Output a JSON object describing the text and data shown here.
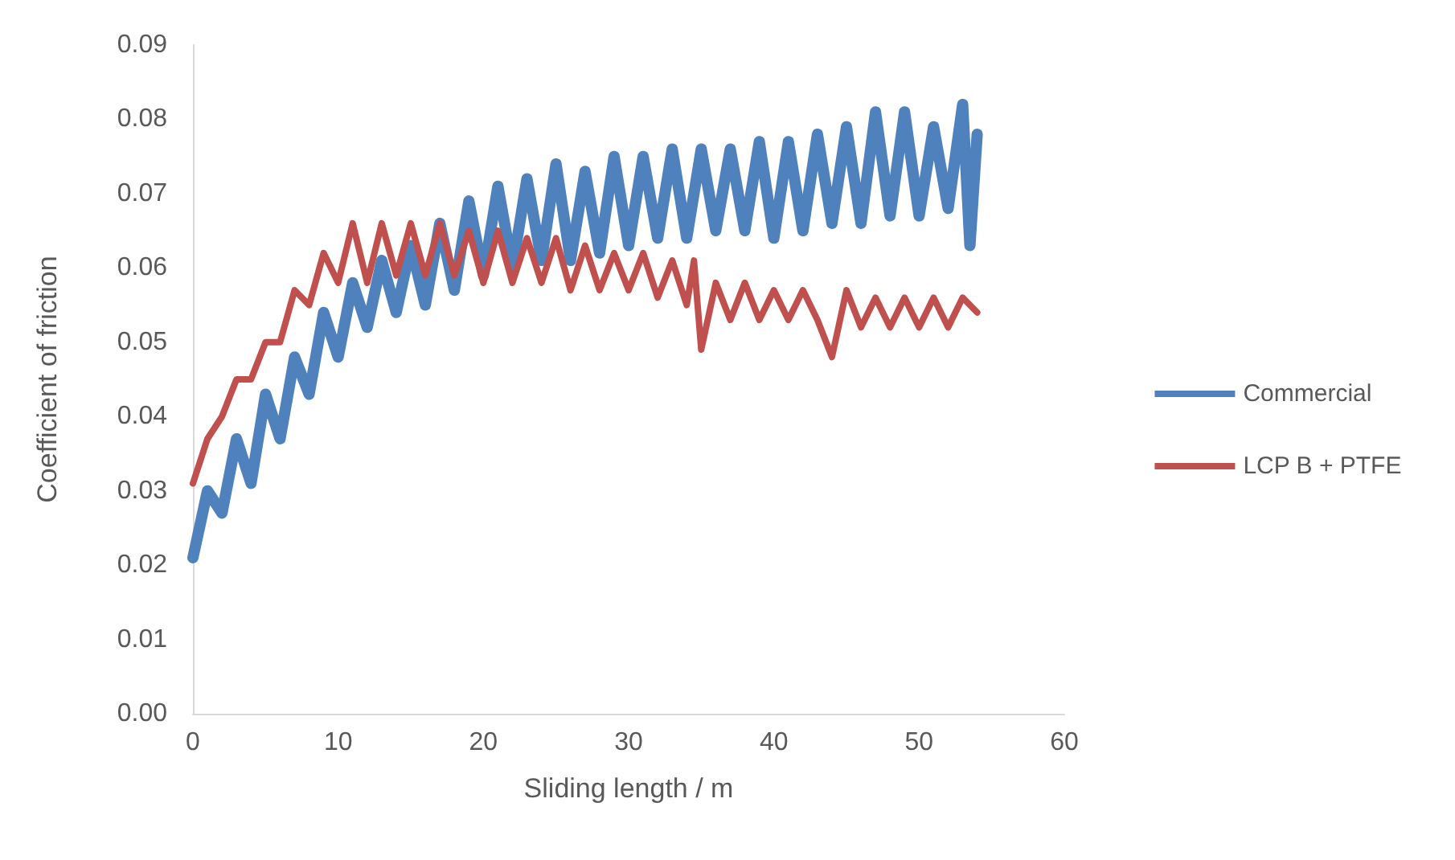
{
  "chart_data": {
    "type": "line",
    "xlabel": "Sliding length / m",
    "ylabel": "Coefficient of friction",
    "xlim": [
      0,
      60
    ],
    "xticks": [
      0,
      10,
      20,
      30,
      40,
      50,
      60
    ],
    "ylim": [
      0,
      0.09
    ],
    "yticks": [
      {
        "value": 0,
        "label": "0.00"
      },
      {
        "value": 0.01,
        "label": "0.01"
      },
      {
        "value": 0.02,
        "label": "0.02"
      },
      {
        "value": 0.03,
        "label": "0.03"
      },
      {
        "value": 0.04,
        "label": "0.04"
      },
      {
        "value": 0.05,
        "label": "0.05"
      },
      {
        "value": 0.06,
        "label": "0.06"
      },
      {
        "value": 0.07,
        "label": "0.07"
      },
      {
        "value": 0.08,
        "label": "0.08"
      },
      {
        "value": 0.09,
        "label": "0.09"
      }
    ],
    "grid": false,
    "legend": "right",
    "marker": "none",
    "line_style": "solid",
    "series": [
      {
        "name": "Commercial",
        "color": "#4f81bd",
        "x": [
          0,
          1,
          2,
          3,
          4,
          5,
          6,
          7,
          8,
          9,
          10,
          11,
          12,
          13,
          14,
          15,
          16,
          17,
          18,
          19,
          20,
          21,
          22,
          23,
          24,
          25,
          26,
          27,
          28,
          29,
          30,
          31,
          32,
          33,
          34,
          35,
          36,
          37,
          38,
          39,
          40,
          41,
          42,
          43,
          44,
          45,
          46,
          47,
          48,
          49,
          50,
          51,
          52,
          53,
          53.5,
          54
        ],
        "values": [
          0.021,
          0.03,
          0.027,
          0.037,
          0.031,
          0.043,
          0.037,
          0.048,
          0.043,
          0.054,
          0.048,
          0.058,
          0.052,
          0.061,
          0.054,
          0.063,
          0.055,
          0.066,
          0.057,
          0.069,
          0.059,
          0.071,
          0.06,
          0.072,
          0.061,
          0.074,
          0.061,
          0.073,
          0.062,
          0.075,
          0.063,
          0.075,
          0.064,
          0.076,
          0.064,
          0.076,
          0.065,
          0.076,
          0.065,
          0.077,
          0.064,
          0.077,
          0.065,
          0.078,
          0.066,
          0.079,
          0.066,
          0.081,
          0.067,
          0.081,
          0.067,
          0.079,
          0.068,
          0.082,
          0.063,
          0.078
        ]
      },
      {
        "name": "LCP B + PTFE",
        "color": "#c0504d",
        "x": [
          0,
          1,
          2,
          3,
          4,
          5,
          6,
          7,
          8,
          9,
          10,
          11,
          12,
          13,
          14,
          15,
          16,
          17,
          18,
          19,
          20,
          21,
          22,
          23,
          24,
          25,
          26,
          27,
          28,
          29,
          30,
          31,
          32,
          33,
          34,
          34.5,
          35,
          36,
          37,
          38,
          39,
          40,
          41,
          42,
          43,
          44,
          45,
          46,
          47,
          48,
          49,
          50,
          51,
          52,
          53,
          54
        ],
        "values": [
          0.031,
          0.037,
          0.04,
          0.045,
          0.045,
          0.05,
          0.05,
          0.057,
          0.055,
          0.062,
          0.058,
          0.066,
          0.058,
          0.066,
          0.059,
          0.066,
          0.059,
          0.066,
          0.059,
          0.065,
          0.058,
          0.065,
          0.058,
          0.064,
          0.058,
          0.064,
          0.057,
          0.063,
          0.057,
          0.062,
          0.057,
          0.062,
          0.056,
          0.061,
          0.055,
          0.061,
          0.049,
          0.058,
          0.053,
          0.058,
          0.053,
          0.057,
          0.053,
          0.057,
          0.053,
          0.048,
          0.057,
          0.052,
          0.056,
          0.052,
          0.056,
          0.052,
          0.056,
          0.052,
          0.056,
          0.054
        ]
      }
    ]
  }
}
